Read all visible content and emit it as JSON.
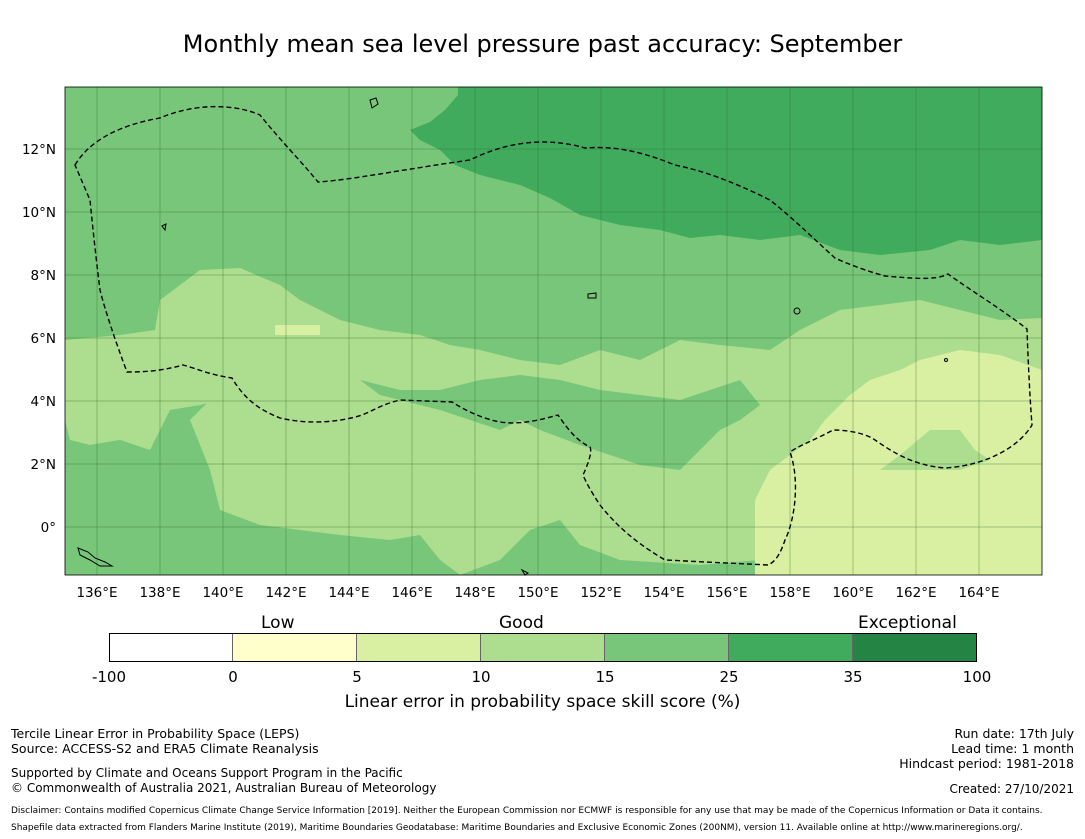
{
  "title": "Monthly mean sea level pressure past accuracy: September",
  "colorbar": {
    "categories": [
      "Low",
      "Good",
      "Exceptional"
    ],
    "ticks": [
      "-100",
      "0",
      "5",
      "10",
      "15",
      "25",
      "35",
      "100"
    ],
    "colors": [
      "#ffffff",
      "#ffffcc",
      "#d9f0a3",
      "#addd8e",
      "#78c679",
      "#41ab5d",
      "#238443"
    ],
    "label": "Linear error in probability space skill score (%)"
  },
  "map": {
    "lon_labels": [
      "136°E",
      "138°E",
      "140°E",
      "142°E",
      "144°E",
      "146°E",
      "148°E",
      "150°E",
      "152°E",
      "154°E",
      "156°E",
      "158°E",
      "160°E",
      "162°E",
      "164°E"
    ],
    "lat_labels": [
      "12°N",
      "10°N",
      "8°N",
      "6°N",
      "4°N",
      "2°N",
      "0°"
    ],
    "lon_range": [
      135,
      166
    ],
    "lat_range": [
      -1.5,
      14
    ],
    "region_outline": "Federated States of Micronesia EEZ (dashed)"
  },
  "footer": {
    "left1": "Tercile Linear Error in Probability Space (LEPS)",
    "left2": "Source: ACCESS-S2 and ERA5 Climate Reanalysis",
    "left3": "Supported by Climate and Oceans Support Program in the Pacific",
    "left4": "© Commonwealth of Australia 2021, Australian Bureau of Meteorology",
    "right1": "Run date: 17th July",
    "right2": "Lead time: 1 month",
    "right3": "Hindcast period: 1981-2018",
    "right4": "Created: 27/10/2021",
    "disclaimer1": "Disclaimer: Contains modified Copernicus Climate Change Service Information [2019]. Neither the European Commission nor ECMWF is responsible for any use that may be made of the Copernicus Information or Data it contains.",
    "disclaimer2": "Shapefile data extracted from Flanders Marine Institute (2019), Maritime Boundaries Geodatabase: Maritime Boundaries and Exclusive Economic Zones (200NM), version 11. Available online at http://www.marineregions.org/."
  }
}
